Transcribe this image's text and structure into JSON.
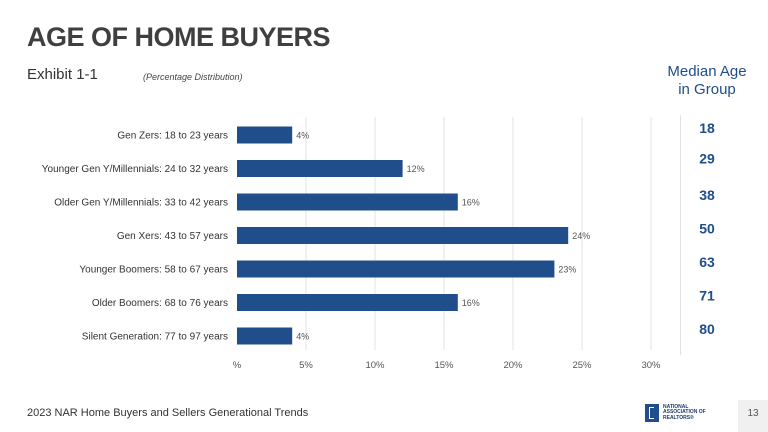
{
  "header": {
    "title": "AGE OF HOME BUYERS",
    "exhibit": "Exhibit 1-1",
    "subtitle": "(Percentage Distribution)",
    "median_header_line1": "Median Age",
    "median_header_line2": "in Group"
  },
  "chart_data": {
    "type": "bar",
    "orientation": "horizontal",
    "categories": [
      "Gen Zers: 18 to 23 years",
      "Younger Gen Y/Millennials: 24 to 32 years",
      "Older Gen Y/Millennials: 33 to 42 years",
      "Gen Xers: 43 to 57 years",
      "Younger Boomers: 58 to 67 years",
      "Older Boomers: 68 to 76 years",
      "Silent Generation: 77 to 97 years"
    ],
    "values": [
      4,
      12,
      16,
      24,
      23,
      16,
      4
    ],
    "value_labels": [
      "4%",
      "12%",
      "16%",
      "24%",
      "23%",
      "16%",
      "4%"
    ],
    "median_age": [
      "18",
      "29",
      "38",
      "50",
      "63",
      "71",
      "80"
    ],
    "xlim": [
      0,
      30
    ],
    "x_ticks": [
      0,
      5,
      10,
      15,
      20,
      25,
      30
    ],
    "x_tick_labels": [
      "%",
      "5%",
      "10%",
      "15%",
      "20%",
      "25%",
      "30%"
    ],
    "grid": "vertical",
    "bar_color": "#1f4e8a",
    "median_color": "#1f4e8a"
  },
  "footer": {
    "source": "2023 NAR Home Buyers and Sellers Generational Trends",
    "logo_line1": "NATIONAL",
    "logo_line2": "ASSOCIATION OF",
    "logo_line3": "REALTORS®",
    "page_number": "13"
  }
}
